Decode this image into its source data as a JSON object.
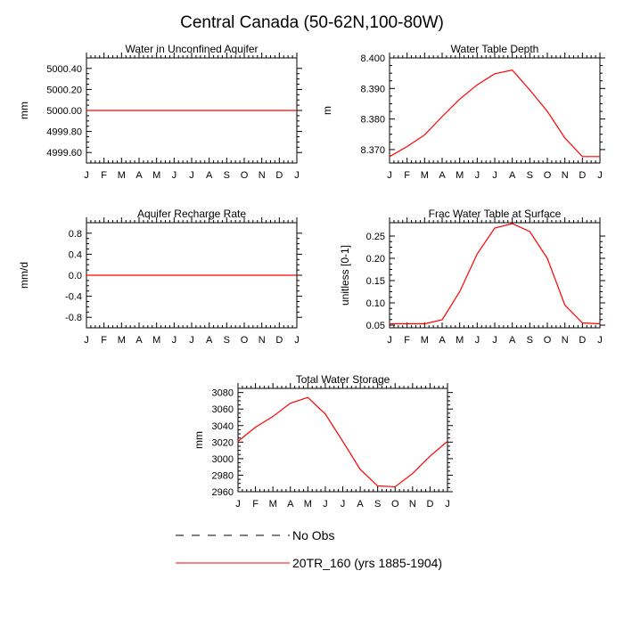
{
  "page": {
    "title": "Central Canada (50-62N,100-80W)"
  },
  "colors": {
    "model_line": "#ff0000",
    "axis": "#000000",
    "background": "#ffffff"
  },
  "legend": {
    "obs_label": "No Obs",
    "model_label": "20TR_160 (yrs 1885-1904)"
  },
  "chart_data": [
    {
      "id": "aquifer",
      "type": "line",
      "title": "Water in Unconfined Aquifer",
      "xlabel": "",
      "ylabel": "mm",
      "categories": [
        "J",
        "F",
        "M",
        "A",
        "M",
        "J",
        "J",
        "A",
        "S",
        "O",
        "N",
        "D",
        "J"
      ],
      "ylim": [
        4999.5,
        5000.5
      ],
      "yticks": [
        4999.6,
        4999.8,
        5000.0,
        5000.2,
        5000.4
      ],
      "yticklabels": [
        "4999.60",
        "4999.80",
        "5000.00",
        "5000.20",
        "5000.40"
      ],
      "series": [
        {
          "name": "20TR_160 (yrs 1885-1904)",
          "values": [
            5000,
            5000,
            5000,
            5000,
            5000,
            5000,
            5000,
            5000,
            5000,
            5000,
            5000,
            5000,
            5000
          ]
        }
      ]
    },
    {
      "id": "wtd",
      "type": "line",
      "title": "Water Table Depth",
      "xlabel": "",
      "ylabel": "m",
      "categories": [
        "J",
        "F",
        "M",
        "A",
        "M",
        "J",
        "J",
        "A",
        "S",
        "O",
        "N",
        "D",
        "J"
      ],
      "ylim": [
        8.3656,
        8.4
      ],
      "yticks": [
        8.37,
        8.38,
        8.39,
        8.4
      ],
      "yticklabels": [
        "8.370",
        "8.380",
        "8.390",
        "8.400"
      ],
      "series": [
        {
          "name": "20TR_160 (yrs 1885-1904)",
          "values": [
            8.3677,
            8.371,
            8.3748,
            8.3808,
            8.3865,
            8.3912,
            8.3948,
            8.396,
            8.3895,
            8.3825,
            8.3738,
            8.3677,
            8.3677
          ]
        }
      ]
    },
    {
      "id": "recharge",
      "type": "line",
      "title": "Aquifer Recharge Rate",
      "xlabel": "",
      "ylabel": "mm/d",
      "categories": [
        "J",
        "F",
        "M",
        "A",
        "M",
        "J",
        "J",
        "A",
        "S",
        "O",
        "N",
        "D",
        "J"
      ],
      "ylim": [
        -1.0,
        1.0
      ],
      "yticks": [
        -0.8,
        -0.4,
        0.0,
        0.4,
        0.8
      ],
      "yticklabels": [
        "-0.8",
        "-0.4",
        "0.0",
        "0.4",
        "0.8"
      ],
      "series": [
        {
          "name": "20TR_160 (yrs 1885-1904)",
          "values": [
            0,
            0,
            0,
            0,
            0,
            0,
            0,
            0,
            0,
            0,
            0,
            0,
            0
          ]
        }
      ]
    },
    {
      "id": "fwt",
      "type": "line",
      "title": "Frac Water Table at Surface",
      "xlabel": "",
      "ylabel": "unitless [0-1]",
      "categories": [
        "J",
        "F",
        "M",
        "A",
        "M",
        "J",
        "J",
        "A",
        "S",
        "O",
        "N",
        "D",
        "J"
      ],
      "ylim": [
        0.044,
        0.28
      ],
      "yticks": [
        0.05,
        0.1,
        0.15,
        0.2,
        0.25
      ],
      "yticklabels": [
        "0.05",
        "0.10",
        "0.15",
        "0.20",
        "0.25"
      ],
      "series": [
        {
          "name": "20TR_160 (yrs 1885-1904)",
          "values": [
            0.053,
            0.053,
            0.053,
            0.062,
            0.125,
            0.21,
            0.268,
            0.278,
            0.26,
            0.2,
            0.095,
            0.055,
            0.053
          ]
        }
      ]
    },
    {
      "id": "tws",
      "type": "line",
      "title": "Total Water Storage",
      "xlabel": "",
      "ylabel": "mm",
      "categories": [
        "J",
        "F",
        "M",
        "A",
        "M",
        "J",
        "J",
        "A",
        "S",
        "O",
        "N",
        "D",
        "J"
      ],
      "ylim": [
        2960,
        3085
      ],
      "yticks": [
        2960,
        2980,
        3000,
        3020,
        3040,
        3060,
        3080
      ],
      "yticklabels": [
        "2960",
        "2980",
        "3000",
        "3020",
        "3040",
        "3060",
        "3080"
      ],
      "series": [
        {
          "name": "20TR_160 (yrs 1885-1904)",
          "values": [
            3021,
            3038,
            3051,
            3067,
            3074,
            3054,
            3021,
            2987,
            2967,
            2966,
            2982,
            3003,
            3021
          ]
        }
      ]
    }
  ]
}
